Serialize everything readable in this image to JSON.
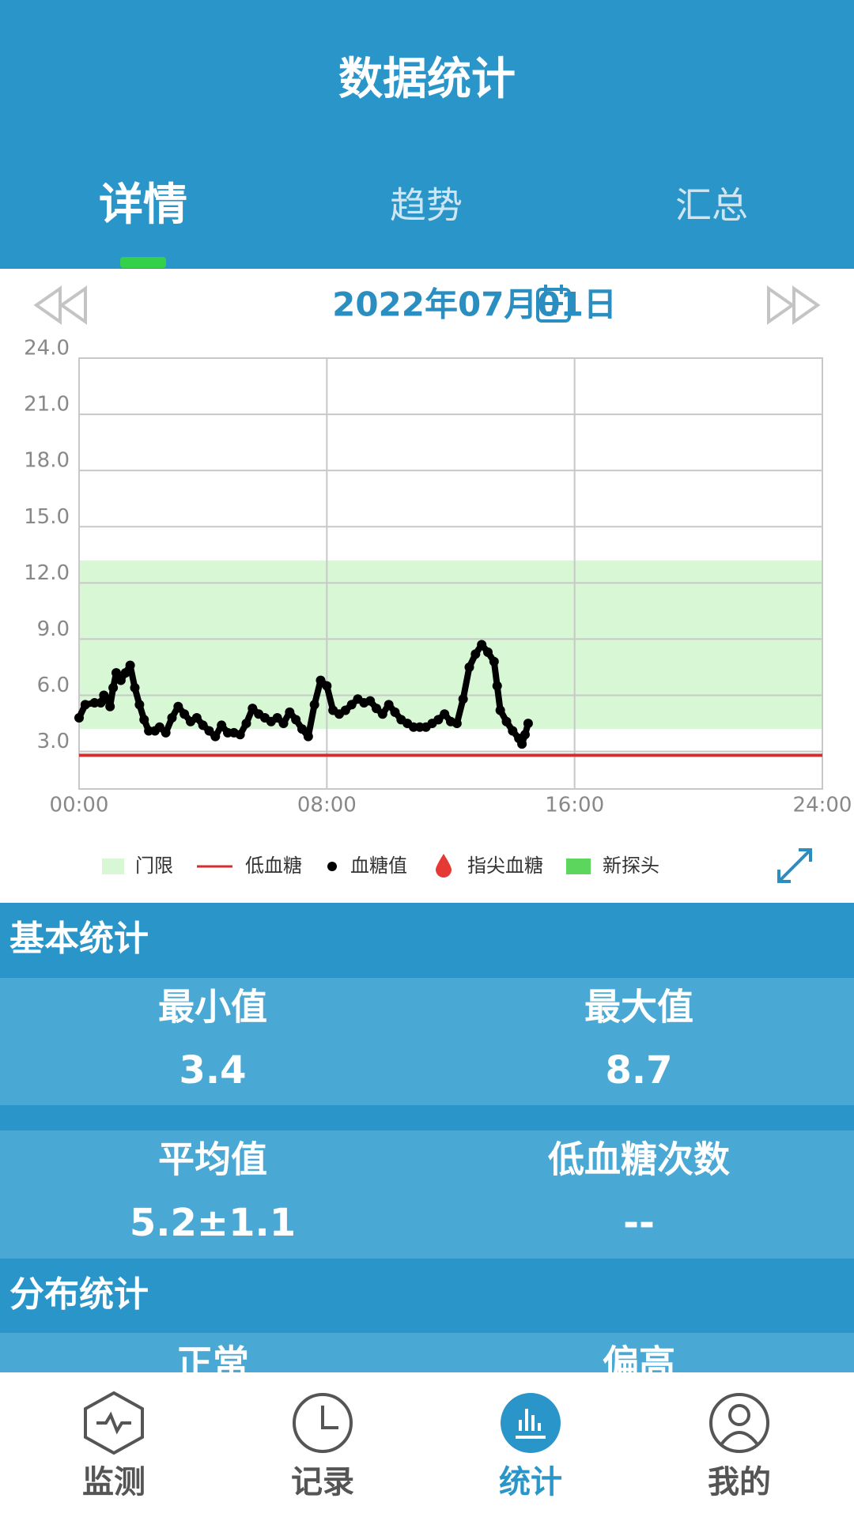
{
  "header": {
    "title": "数据统计"
  },
  "tabs": [
    "详情",
    "趋势",
    "汇总"
  ],
  "active_tab": 0,
  "date": "2022年07月01日",
  "chart_data": {
    "type": "scatter",
    "xlim": [
      0,
      24
    ],
    "xticks": [
      {
        "value": 0,
        "label": "00:00"
      },
      {
        "value": 8,
        "label": "08:00"
      },
      {
        "value": 16,
        "label": "16:00"
      },
      {
        "value": 24,
        "label": "24:00"
      }
    ],
    "ylim": [
      1,
      24
    ],
    "yticks": [
      {
        "value": 3,
        "label": "3.0"
      },
      {
        "value": 6,
        "label": "6.0"
      },
      {
        "value": 9,
        "label": "9.0"
      },
      {
        "value": 12,
        "label": "12.0"
      },
      {
        "value": 15,
        "label": "15.0"
      },
      {
        "value": 18,
        "label": "18.0"
      },
      {
        "value": 21,
        "label": "21.0"
      },
      {
        "value": 24,
        "label": "24.0"
      }
    ],
    "grid": true,
    "threshold": {
      "name": "门限",
      "color": "#d7f7d5",
      "range": [
        4.2,
        13.2
      ]
    },
    "low": {
      "name": "低血糖",
      "color": "#d32f2f",
      "value": 2.8
    },
    "series": [
      {
        "name": "血糖值",
        "color": "#000000",
        "x": [
          0,
          0.2,
          0.5,
          0.7,
          0.8,
          0.9,
          1.0,
          1.1,
          1.2,
          1.35,
          1.5,
          1.65,
          1.8,
          1.95,
          2.1,
          2.25,
          2.45,
          2.6,
          2.8,
          3.0,
          3.2,
          3.4,
          3.6,
          3.8,
          4.0,
          4.2,
          4.4,
          4.6,
          4.8,
          5.0,
          5.2,
          5.4,
          5.6,
          5.8,
          6.0,
          6.2,
          6.4,
          6.6,
          6.8,
          7.0,
          7.2,
          7.4,
          7.6,
          7.8,
          8.0,
          8.2,
          8.4,
          8.6,
          8.8,
          9.0,
          9.2,
          9.4,
          9.6,
          9.8,
          10.0,
          10.2,
          10.4,
          10.6,
          10.8,
          11.0,
          11.2,
          11.4,
          11.6,
          11.8,
          12.0,
          12.2,
          12.4,
          12.6,
          12.8,
          13.0,
          13.2,
          13.4,
          13.5,
          13.6,
          13.8,
          14.0,
          14.2,
          14.3,
          14.4,
          14.5
        ],
        "values": [
          4.8,
          5.5,
          5.6,
          5.6,
          6.0,
          5.8,
          5.4,
          6.4,
          7.2,
          6.8,
          7.2,
          7.6,
          6.4,
          5.5,
          4.7,
          4.1,
          4.1,
          4.3,
          4.0,
          4.8,
          5.4,
          5.0,
          4.6,
          4.8,
          4.4,
          4.1,
          3.8,
          4.4,
          4.0,
          4.0,
          3.9,
          4.5,
          5.3,
          5.0,
          4.8,
          4.6,
          4.8,
          4.5,
          5.1,
          4.7,
          4.2,
          3.8,
          5.5,
          6.8,
          6.5,
          5.2,
          5.0,
          5.2,
          5.5,
          5.8,
          5.6,
          5.7,
          5.3,
          5.0,
          5.5,
          5.1,
          4.7,
          4.5,
          4.3,
          4.3,
          4.3,
          4.5,
          4.7,
          5.0,
          4.6,
          4.5,
          5.8,
          7.5,
          8.2,
          8.7,
          8.3,
          7.8,
          6.5,
          5.2,
          4.6,
          4.1,
          3.7,
          3.4,
          3.9,
          4.5
        ]
      }
    ],
    "extra_legend": [
      {
        "name": "指尖血糖",
        "color": "#e53935"
      },
      {
        "name": "新探头",
        "color": "#5cd65c"
      }
    ]
  },
  "basic": {
    "title": "基本统计",
    "items": [
      {
        "label": "最小值",
        "value": 3.4
      },
      {
        "label": "最大值",
        "value": 8.7
      },
      {
        "label": "平均值",
        "value": "5.2±1.1"
      },
      {
        "label": "低血糖次数",
        "value": "--"
      }
    ]
  },
  "distribution": {
    "title": "分布统计",
    "items": [
      {
        "label": "正常"
      },
      {
        "label": "偏高"
      }
    ]
  },
  "nav": [
    "监测",
    "记录",
    "统计",
    "我的"
  ],
  "active_nav": 2
}
